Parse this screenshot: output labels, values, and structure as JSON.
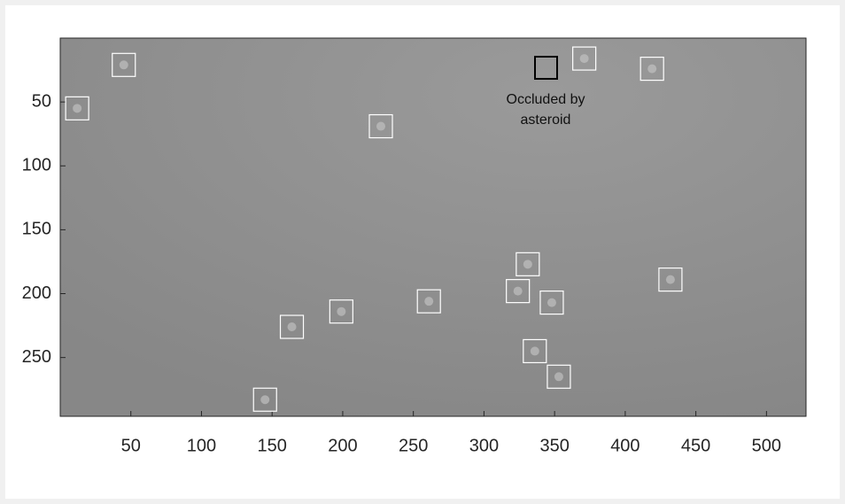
{
  "chart_data": {
    "type": "scatter",
    "x": [
      45,
      12,
      227,
      371,
      419,
      331,
      324,
      348,
      432,
      261,
      199,
      164,
      336,
      353,
      145
    ],
    "values": [
      21,
      55,
      69,
      16,
      24,
      177,
      198,
      207,
      189,
      206,
      214,
      226,
      245,
      265,
      283
    ],
    "color": "#ffffff",
    "xlim": [
      0,
      528
    ],
    "ylim": [
      296,
      0
    ],
    "xticks": [
      50,
      100,
      150,
      200,
      250,
      300,
      350,
      400,
      450,
      500
    ],
    "yticks": [
      50,
      100,
      150,
      200,
      250
    ],
    "annotation": [
      "Occluded by",
      "asteroid"
    ]
  }
}
